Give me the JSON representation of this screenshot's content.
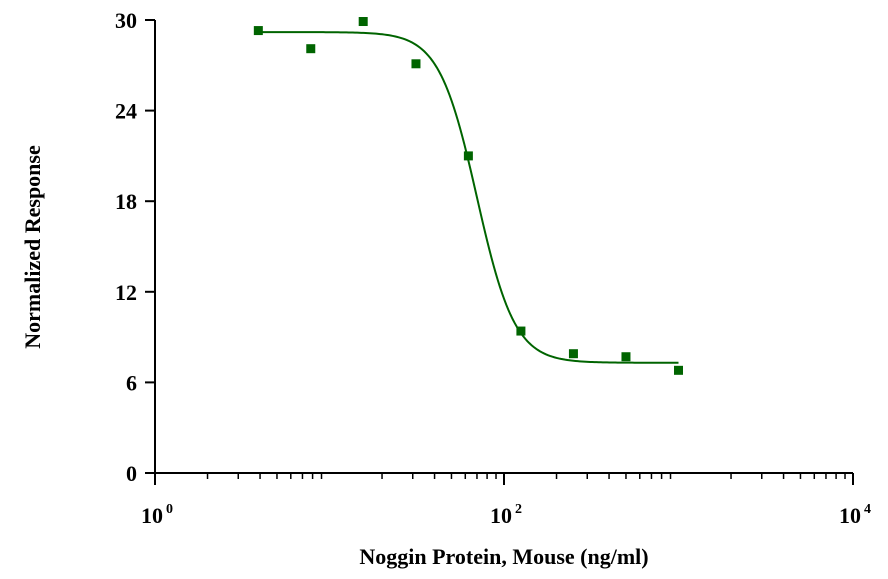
{
  "chart_data": {
    "type": "scatter",
    "title": "",
    "xlabel": "Noggin Protein, Mouse  (ng/ml)",
    "ylabel": "Normalized Response",
    "x_scale": "log10",
    "xlim": [
      1,
      10000
    ],
    "ylim": [
      0,
      30
    ],
    "x_ticks": [
      {
        "base": "10",
        "exp": "0",
        "value": 1
      },
      {
        "base": "10",
        "exp": "2",
        "value": 100
      },
      {
        "base": "10",
        "exp": "4",
        "value": 10000
      }
    ],
    "y_ticks": [
      "0",
      "6",
      "12",
      "18",
      "24",
      "30"
    ],
    "grid": false,
    "legend": "none",
    "color": "#006400",
    "series": [
      {
        "marker": "square",
        "x": [
          3.91,
          7.81,
          15.6,
          31.3,
          62.5,
          125,
          250,
          500,
          1000
        ],
        "y": [
          29.3,
          28.1,
          29.9,
          27.1,
          21.0,
          9.4,
          7.9,
          7.7,
          6.8
        ]
      }
    ],
    "fit_curve": {
      "model": "4PL",
      "top": 29.2,
      "bottom": 7.3,
      "ec50": 70,
      "hill": 4.0,
      "x_range": [
        3.91,
        1000
      ]
    }
  }
}
